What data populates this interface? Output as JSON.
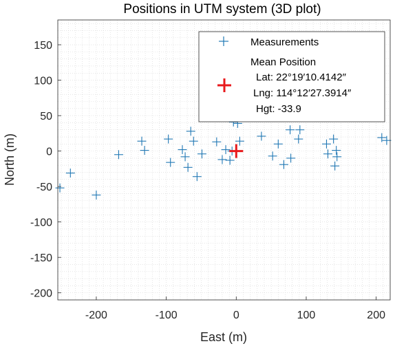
{
  "chart_data": {
    "type": "scatter",
    "title": "Positions in UTM system (3D plot)",
    "xlabel": "East (m)",
    "ylabel": "North (m)",
    "xlim": [
      -255,
      220
    ],
    "ylim": [
      -210,
      185
    ],
    "xticks": [
      -200,
      -100,
      0,
      100,
      200
    ],
    "xtick_labels": [
      "-200",
      "-100",
      "0",
      "100",
      "200"
    ],
    "yticks": [
      150,
      100,
      50,
      0,
      -50,
      -100,
      -150,
      -200
    ],
    "ytick_labels": [
      "150",
      "100",
      "50",
      "0",
      "-50",
      "-100",
      "-150",
      "-200"
    ],
    "grid": "minor-dotted",
    "series": [
      {
        "name": "Measurements",
        "marker": "+",
        "color": "#1f77b4",
        "points": [
          [
            -252,
            -52
          ],
          [
            -237,
            -31
          ],
          [
            -200,
            -62
          ],
          [
            -168,
            -5
          ],
          [
            -135,
            14
          ],
          [
            -131,
            1
          ],
          [
            -97,
            17
          ],
          [
            -94,
            -16
          ],
          [
            -77,
            2
          ],
          [
            -73,
            -8
          ],
          [
            -69,
            -23
          ],
          [
            -65,
            28
          ],
          [
            -61,
            14
          ],
          [
            -56,
            -36
          ],
          [
            -49,
            -4
          ],
          [
            -28,
            13
          ],
          [
            -20,
            -12
          ],
          [
            -15,
            2
          ],
          [
            -9,
            -13
          ],
          [
            -4,
            41
          ],
          [
            2,
            39
          ],
          [
            5,
            14
          ],
          [
            -6,
            0
          ],
          [
            36,
            21
          ],
          [
            52,
            -7
          ],
          [
            60,
            10
          ],
          [
            68,
            -19
          ],
          [
            77,
            30
          ],
          [
            78,
            -10
          ],
          [
            89,
            17
          ],
          [
            91,
            30
          ],
          [
            129,
            10
          ],
          [
            131,
            -4
          ],
          [
            139,
            17
          ],
          [
            141,
            -21
          ],
          [
            143,
            1
          ],
          [
            144,
            -8
          ],
          [
            208,
            19
          ],
          [
            215,
            15
          ]
        ]
      },
      {
        "name": "Mean Position",
        "marker": "+",
        "color": "#e8191c",
        "points": [
          [
            0,
            0
          ]
        ]
      }
    ],
    "legend": {
      "position": "top-right",
      "measurements_label": "Measurements",
      "mean_label": "Mean Position",
      "lat": "Lat: 22°19′10.4142″",
      "lng": "Lng: 114°12′27.3914″",
      "hgt": "Hgt: -33.9"
    }
  }
}
